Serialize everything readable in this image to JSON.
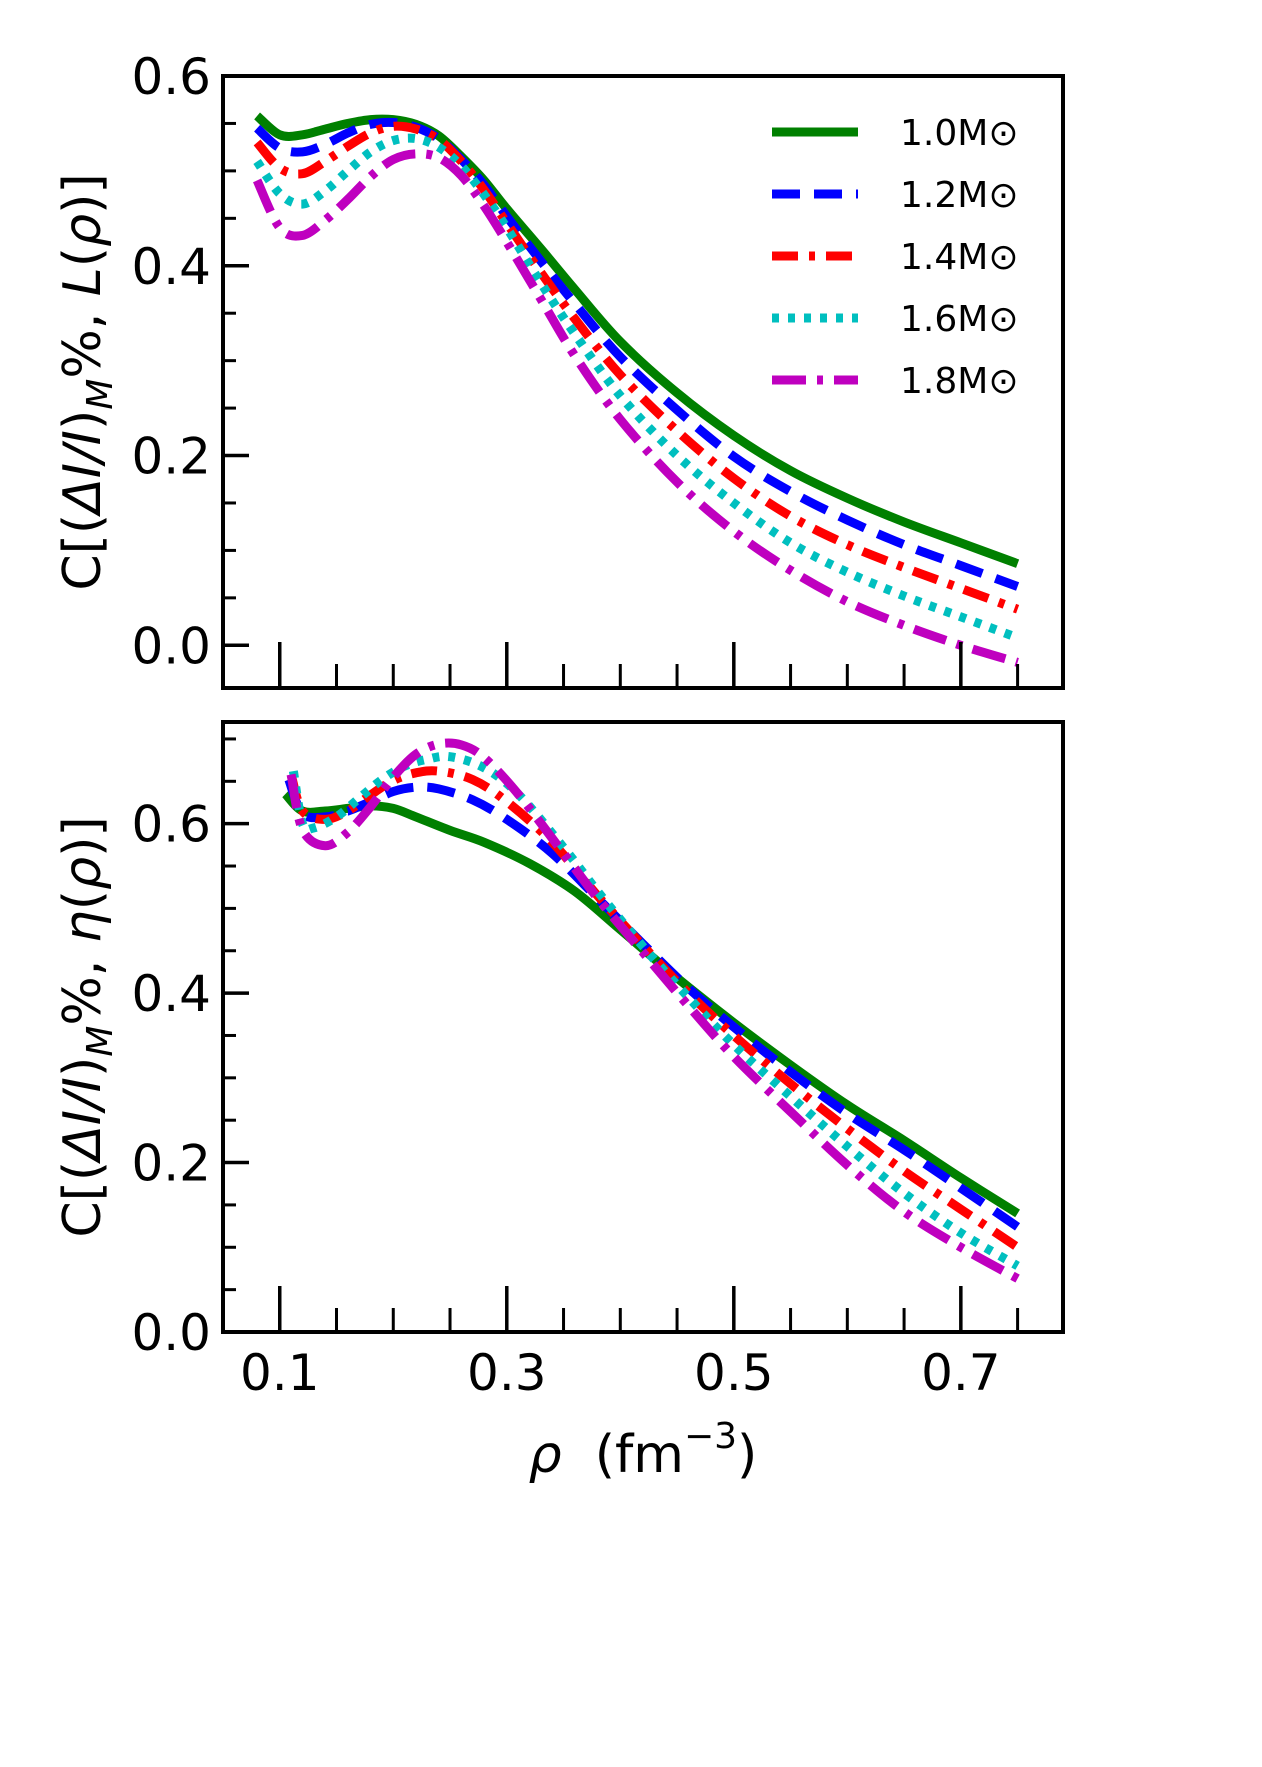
{
  "chart_data": [
    {
      "type": "line",
      "ylabel": "C[(ΔI/I)M%, L(ρ)]",
      "xlabel": "",
      "xlim": [
        0.05,
        0.79
      ],
      "ylim": [
        -0.045,
        0.6
      ],
      "xticks": [
        0.1,
        0.3,
        0.5,
        0.7
      ],
      "xticks_labeled": false,
      "yticks": [
        0.0,
        0.2,
        0.4,
        0.6
      ],
      "ytick_labels": [
        "0.0",
        "0.2",
        "0.4",
        "0.6"
      ],
      "legend_position": "top-right",
      "grid": false,
      "series": [
        {
          "name": "1.0M⊙",
          "color": "#008000",
          "style": "solid",
          "x": [
            0.08,
            0.1,
            0.12,
            0.14,
            0.16,
            0.18,
            0.2,
            0.22,
            0.24,
            0.26,
            0.28,
            0.3,
            0.33,
            0.36,
            0.4,
            0.45,
            0.5,
            0.55,
            0.6,
            0.65,
            0.7,
            0.75
          ],
          "y": [
            0.558,
            0.538,
            0.538,
            0.544,
            0.55,
            0.554,
            0.554,
            0.549,
            0.537,
            0.515,
            0.49,
            0.46,
            0.418,
            0.375,
            0.32,
            0.266,
            0.221,
            0.184,
            0.155,
            0.13,
            0.108,
            0.086
          ]
        },
        {
          "name": "1.2M⊙",
          "color": "#0000ff",
          "style": "dashed",
          "x": [
            0.08,
            0.1,
            0.12,
            0.14,
            0.16,
            0.18,
            0.2,
            0.22,
            0.24,
            0.26,
            0.28,
            0.3,
            0.33,
            0.36,
            0.4,
            0.45,
            0.5,
            0.55,
            0.6,
            0.65,
            0.7,
            0.75
          ],
          "y": [
            0.545,
            0.524,
            0.52,
            0.528,
            0.54,
            0.549,
            0.551,
            0.546,
            0.534,
            0.512,
            0.485,
            0.452,
            0.405,
            0.36,
            0.304,
            0.248,
            0.199,
            0.162,
            0.132,
            0.106,
            0.084,
            0.062
          ]
        },
        {
          "name": "1.4M⊙",
          "color": "#ff0000",
          "style": "dashdot",
          "x": [
            0.08,
            0.1,
            0.12,
            0.14,
            0.16,
            0.18,
            0.2,
            0.22,
            0.24,
            0.26,
            0.28,
            0.3,
            0.33,
            0.36,
            0.4,
            0.45,
            0.5,
            0.55,
            0.6,
            0.65,
            0.7,
            0.75
          ],
          "y": [
            0.53,
            0.503,
            0.497,
            0.51,
            0.526,
            0.54,
            0.547,
            0.544,
            0.533,
            0.51,
            0.48,
            0.445,
            0.393,
            0.344,
            0.285,
            0.226,
            0.176,
            0.136,
            0.106,
            0.082,
            0.06,
            0.038
          ]
        },
        {
          "name": "1.6M⊙",
          "color": "#00bfbf",
          "style": "dotted",
          "x": [
            0.08,
            0.1,
            0.12,
            0.14,
            0.16,
            0.18,
            0.2,
            0.22,
            0.24,
            0.26,
            0.28,
            0.3,
            0.33,
            0.36,
            0.4,
            0.45,
            0.5,
            0.55,
            0.6,
            0.65,
            0.7,
            0.75
          ],
          "y": [
            0.51,
            0.476,
            0.465,
            0.479,
            0.5,
            0.52,
            0.532,
            0.534,
            0.525,
            0.505,
            0.475,
            0.44,
            0.382,
            0.328,
            0.263,
            0.2,
            0.15,
            0.108,
            0.077,
            0.052,
            0.03,
            0.008
          ]
        },
        {
          "name": "1.8M⊙",
          "color": "#bf00bf",
          "style": "longdashdot",
          "x": [
            0.08,
            0.1,
            0.12,
            0.14,
            0.16,
            0.18,
            0.2,
            0.22,
            0.24,
            0.26,
            0.28,
            0.3,
            0.33,
            0.36,
            0.4,
            0.45,
            0.5,
            0.55,
            0.6,
            0.65,
            0.7,
            0.75
          ],
          "y": [
            0.49,
            0.44,
            0.432,
            0.448,
            0.47,
            0.494,
            0.512,
            0.518,
            0.514,
            0.495,
            0.463,
            0.425,
            0.365,
            0.305,
            0.238,
            0.172,
            0.12,
            0.079,
            0.046,
            0.021,
            0.0,
            -0.018
          ]
        }
      ]
    },
    {
      "type": "line",
      "ylabel": "C[(ΔI/I)M%, η(ρ)]",
      "xlabel": "ρ  (fm−3)",
      "xlim": [
        0.05,
        0.79
      ],
      "ylim": [
        0.0,
        0.72
      ],
      "xticks": [
        0.1,
        0.3,
        0.5,
        0.7
      ],
      "xtick_labels": [
        "0.1",
        "0.3",
        "0.5",
        "0.7"
      ],
      "yticks": [
        0.0,
        0.2,
        0.4,
        0.6
      ],
      "ytick_labels": [
        "0.0",
        "0.2",
        "0.4",
        "0.6"
      ],
      "grid": false,
      "series": [
        {
          "name": "1.0M⊙",
          "color": "#008000",
          "style": "solid",
          "x": [
            0.105,
            0.12,
            0.14,
            0.16,
            0.18,
            0.2,
            0.22,
            0.25,
            0.28,
            0.32,
            0.36,
            0.4,
            0.45,
            0.5,
            0.55,
            0.6,
            0.65,
            0.7,
            0.75
          ],
          "y": [
            0.635,
            0.615,
            0.615,
            0.618,
            0.621,
            0.618,
            0.608,
            0.592,
            0.578,
            0.553,
            0.52,
            0.475,
            0.418,
            0.365,
            0.315,
            0.268,
            0.226,
            0.182,
            0.14
          ]
        },
        {
          "name": "1.2M⊙",
          "color": "#0000ff",
          "style": "dashed",
          "x": [
            0.108,
            0.12,
            0.14,
            0.16,
            0.18,
            0.2,
            0.22,
            0.24,
            0.27,
            0.3,
            0.34,
            0.38,
            0.42,
            0.46,
            0.5,
            0.55,
            0.6,
            0.65,
            0.7,
            0.75
          ],
          "y": [
            0.652,
            0.612,
            0.608,
            0.615,
            0.626,
            0.638,
            0.643,
            0.641,
            0.628,
            0.605,
            0.565,
            0.512,
            0.458,
            0.406,
            0.36,
            0.307,
            0.258,
            0.215,
            0.17,
            0.124
          ]
        },
        {
          "name": "1.4M⊙",
          "color": "#ff0000",
          "style": "dashdot",
          "x": [
            0.11,
            0.12,
            0.14,
            0.16,
            0.18,
            0.2,
            0.22,
            0.24,
            0.27,
            0.3,
            0.34,
            0.38,
            0.42,
            0.46,
            0.5,
            0.55,
            0.6,
            0.65,
            0.7,
            0.75
          ],
          "y": [
            0.658,
            0.615,
            0.605,
            0.615,
            0.634,
            0.651,
            0.66,
            0.662,
            0.652,
            0.626,
            0.578,
            0.515,
            0.456,
            0.4,
            0.35,
            0.293,
            0.24,
            0.19,
            0.145,
            0.1
          ]
        },
        {
          "name": "1.6M⊙",
          "color": "#00bfbf",
          "style": "dotted",
          "x": [
            0.112,
            0.12,
            0.13,
            0.15,
            0.17,
            0.19,
            0.21,
            0.23,
            0.25,
            0.28,
            0.31,
            0.35,
            0.38,
            0.42,
            0.46,
            0.5,
            0.55,
            0.6,
            0.65,
            0.7,
            0.75
          ],
          "y": [
            0.662,
            0.6,
            0.595,
            0.608,
            0.63,
            0.652,
            0.668,
            0.676,
            0.679,
            0.666,
            0.635,
            0.572,
            0.52,
            0.455,
            0.395,
            0.339,
            0.278,
            0.219,
            0.164,
            0.117,
            0.078
          ]
        },
        {
          "name": "1.8M⊙",
          "color": "#bf00bf",
          "style": "longdashdot",
          "x": [
            0.11,
            0.12,
            0.14,
            0.16,
            0.18,
            0.2,
            0.22,
            0.24,
            0.26,
            0.28,
            0.31,
            0.35,
            0.38,
            0.42,
            0.46,
            0.5,
            0.55,
            0.6,
            0.65,
            0.7,
            0.75
          ],
          "y": [
            0.658,
            0.593,
            0.574,
            0.59,
            0.62,
            0.655,
            0.682,
            0.694,
            0.693,
            0.678,
            0.635,
            0.565,
            0.512,
            0.448,
            0.385,
            0.325,
            0.26,
            0.197,
            0.142,
            0.1,
            0.063
          ]
        }
      ]
    }
  ]
}
